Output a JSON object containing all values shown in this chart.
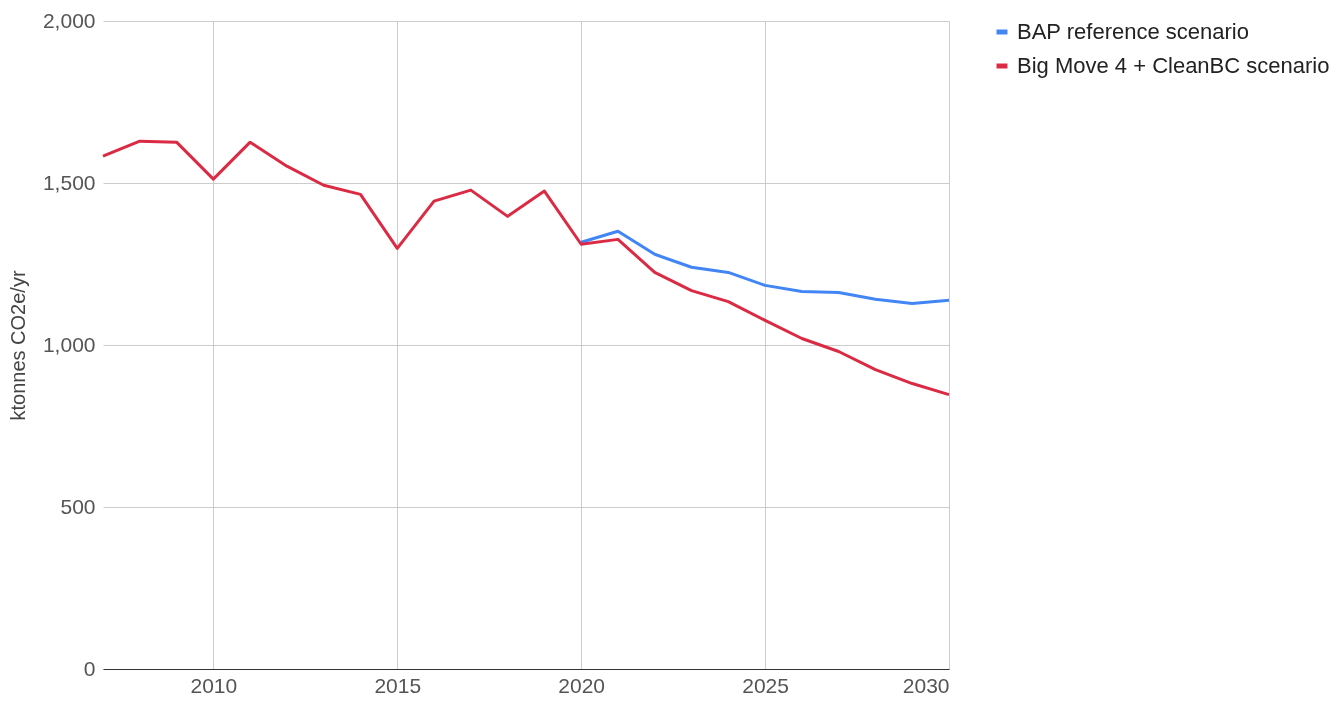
{
  "chart_data": {
    "type": "line",
    "ylabel": "ktonnes CO2e/yr",
    "x": [
      2007,
      2008,
      2009,
      2010,
      2011,
      2012,
      2013,
      2014,
      2015,
      2016,
      2017,
      2018,
      2019,
      2020,
      2021,
      2022,
      2023,
      2024,
      2025,
      2026,
      2027,
      2028,
      2029,
      2030
    ],
    "series": [
      {
        "name": "BAP reference scenario",
        "color": "#4285f4",
        "values": [
          null,
          null,
          null,
          null,
          null,
          null,
          null,
          null,
          null,
          null,
          null,
          null,
          null,
          1317,
          1351,
          1280,
          1240,
          1224,
          1184,
          1165,
          1162,
          1141,
          1128,
          1138
        ]
      },
      {
        "name": "Big Move 4 + CleanBC scenario",
        "color": "#db2a43",
        "values": [
          1583,
          1629,
          1626,
          1512,
          1626,
          1552,
          1493,
          1465,
          1298,
          1444,
          1478,
          1397,
          1475,
          1311,
          1326,
          1224,
          1168,
          1134,
          1076,
          1020,
          980,
          924,
          881,
          847
        ]
      }
    ],
    "xlim": [
      2007,
      2030
    ],
    "xticks": [
      2010,
      2015,
      2020,
      2025,
      2030
    ],
    "ylim": [
      0,
      2000
    ],
    "yticks": [
      {
        "value": 0,
        "label": "0"
      },
      {
        "value": 500,
        "label": "500"
      },
      {
        "value": 1000,
        "label": "1,000"
      },
      {
        "value": 1500,
        "label": "1,500"
      },
      {
        "value": 2000,
        "label": "2,000"
      }
    ],
    "grid": true,
    "legend": "top right",
    "marker": "none",
    "line_style": "solid"
  }
}
